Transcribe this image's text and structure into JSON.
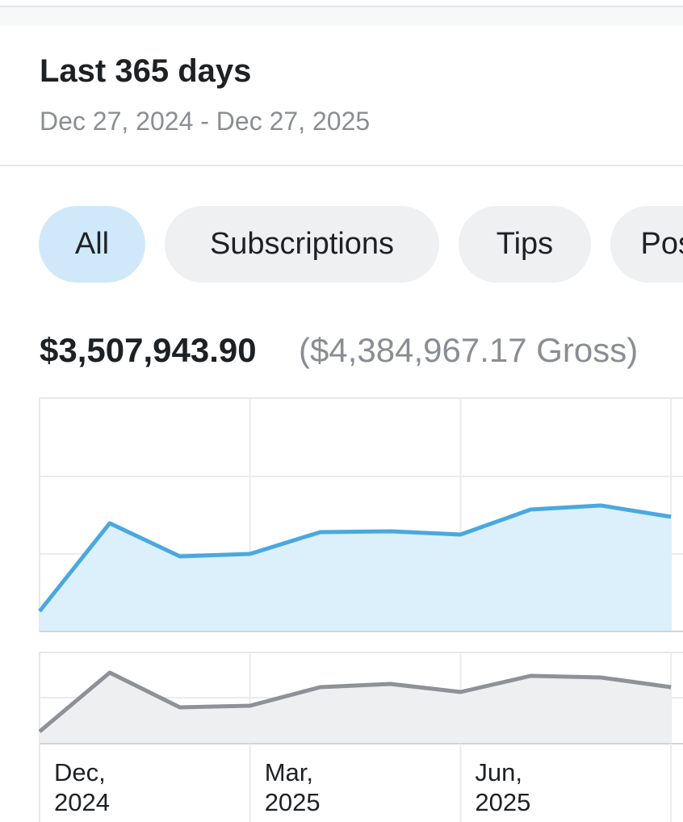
{
  "header": {
    "title": "Last 365 days",
    "date_range": "Dec 27, 2024 - Dec 27, 2025"
  },
  "tabs": [
    "All",
    "Subscriptions",
    "Tips",
    "Posts"
  ],
  "summary": {
    "net": "$3,507,943.90",
    "gross": "($4,384,967.17 Gross)"
  },
  "chart_data": [
    {
      "type": "area",
      "color": "#4aa8e0",
      "fill": "#dcf0fb",
      "ylim": [
        0,
        289
      ],
      "values": [
        25,
        134,
        93,
        96,
        123,
        124,
        120,
        151,
        156,
        142
      ]
    },
    {
      "type": "area",
      "color": "#8e9196",
      "fill": "#eeeff0",
      "ylim": [
        0,
        113
      ],
      "values": [
        15,
        88,
        45,
        47,
        70,
        74,
        64,
        84,
        82,
        70
      ],
      "categories": [
        "Dec, 2024",
        null,
        null,
        "Mar, 2025",
        null,
        null,
        "Jun, 2025",
        null,
        null,
        null
      ]
    }
  ]
}
